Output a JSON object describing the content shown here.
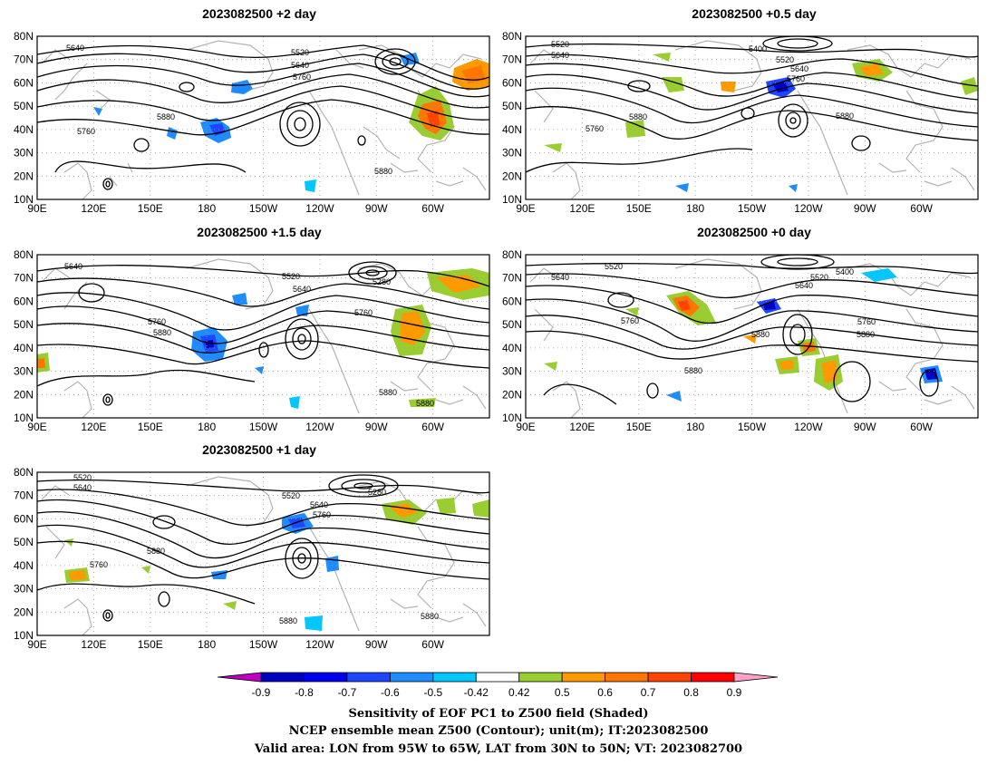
{
  "panels": [
    {
      "id": "p2",
      "title": "2023082500  +2 day",
      "contour_labels": [
        "5640",
        "5520",
        "5640",
        "5760",
        "5880",
        "5760",
        "5880"
      ]
    },
    {
      "id": "p05",
      "title": "2023082500  +0.5 day",
      "contour_labels": [
        "5520",
        "5640",
        "5400",
        "5520",
        "5640",
        "5760",
        "5880",
        "5760",
        "5880"
      ]
    },
    {
      "id": "p15",
      "title": "2023082500  +1.5 day",
      "contour_labels": [
        "5640",
        "5520",
        "5640",
        "5280",
        "5760",
        "5760",
        "5880",
        "5880",
        "5880"
      ]
    },
    {
      "id": "p0",
      "title": "2023082500  +0 day",
      "contour_labels": [
        "5640",
        "5520",
        "5520",
        "5400",
        "5640",
        "5760",
        "5760",
        "5880",
        "5880",
        "5880"
      ]
    },
    {
      "id": "p1",
      "title": "2023082500  +1 day",
      "contour_labels": [
        "5520",
        "5640",
        "5520",
        "5280",
        "5640",
        "5760",
        "5880",
        "5760",
        "5880",
        "5880"
      ]
    }
  ],
  "lat_ticks": [
    "80N",
    "70N",
    "60N",
    "50N",
    "40N",
    "30N",
    "20N",
    "10N"
  ],
  "lon_ticks": [
    "90E",
    "120E",
    "150E",
    "180",
    "150W",
    "120W",
    "90W",
    "60W"
  ],
  "colorbar": {
    "labels": [
      "-0.9",
      "-0.8",
      "-0.7",
      "-0.6",
      "-0.5",
      "-0.42",
      "0.42",
      "0.5",
      "0.6",
      "0.7",
      "0.8",
      "0.9"
    ],
    "colors": [
      "#0000c0",
      "#0000f0",
      "#1e46ff",
      "#1e8cff",
      "#00c8ff",
      "#ffffff",
      "#9acd32",
      "#ff9900",
      "#ff7700",
      "#ff4400",
      "#ff0000"
    ],
    "left_arrow_color": "#c000c0",
    "right_arrow_color": "#ffa0c8"
  },
  "caption": [
    "Sensitivity of EOF PC1 to Z500 field (Shaded)",
    "NCEP ensemble mean Z500 (Contour); unit(m); IT:2023082500",
    "Valid area: LON from 95W to 65W, LAT from 30N to 50N; VT: 2023082700"
  ]
}
